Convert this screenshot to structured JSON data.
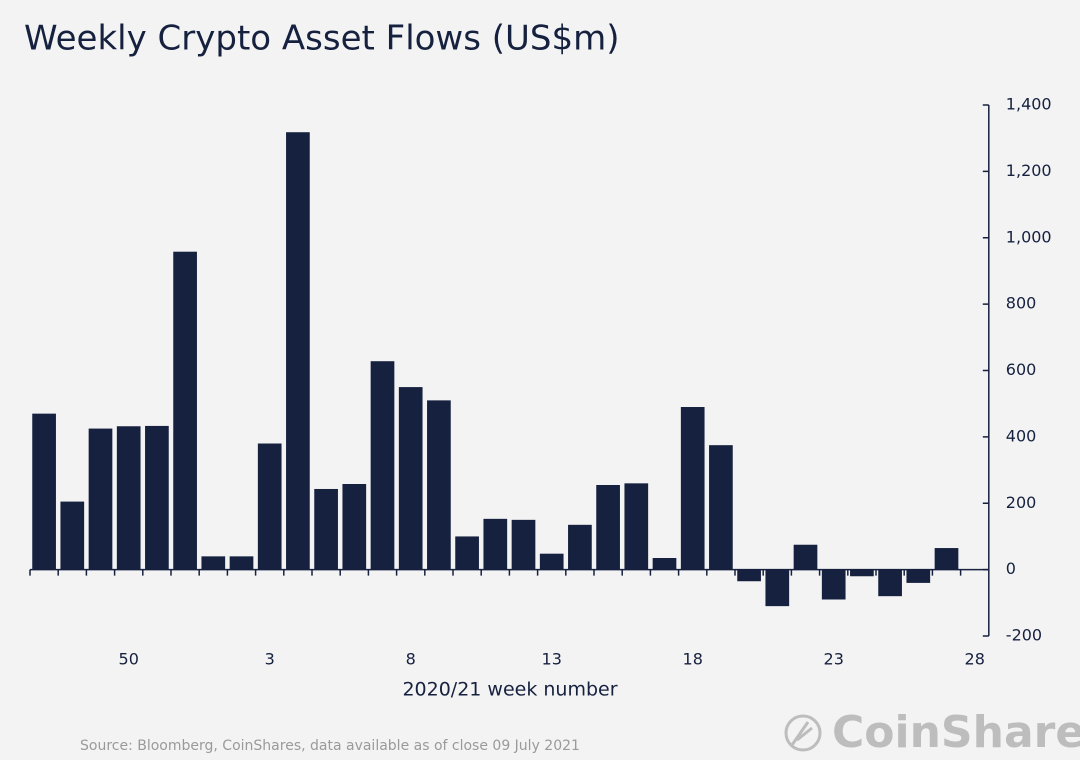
{
  "chart_data": {
    "type": "bar",
    "title": "Weekly Crypto Asset Flows (US$m)",
    "x_label": "2020/21 week number",
    "source": "Source: Bloomberg, CoinShares, data available as of close 09 July 2021",
    "brand": "CoinShares",
    "categories": [
      null,
      null,
      null,
      "50",
      null,
      null,
      null,
      null,
      "3",
      null,
      null,
      null,
      null,
      "8",
      null,
      null,
      null,
      null,
      "13",
      null,
      null,
      null,
      null,
      "18",
      null,
      null,
      null,
      null,
      "23",
      null,
      null,
      null,
      null,
      "28"
    ],
    "values": [
      470,
      205,
      425,
      432,
      433,
      958,
      40,
      40,
      380,
      1318,
      243,
      258,
      628,
      550,
      510,
      100,
      153,
      150,
      48,
      135,
      255,
      260,
      35,
      490,
      375,
      -35,
      -110,
      75,
      -90,
      -20,
      -80,
      -40,
      65,
      null
    ],
    "color": "#16213f",
    "ylim": [
      -200,
      1400
    ],
    "yticks": [
      -200,
      0,
      200,
      400,
      600,
      800,
      {
        "value": 1000,
        "label": "1,000"
      },
      {
        "value": 1200,
        "label": "1,200"
      },
      {
        "value": 1400,
        "label": "1,400"
      }
    ],
    "y_axis_side": "right",
    "grid": false
  }
}
